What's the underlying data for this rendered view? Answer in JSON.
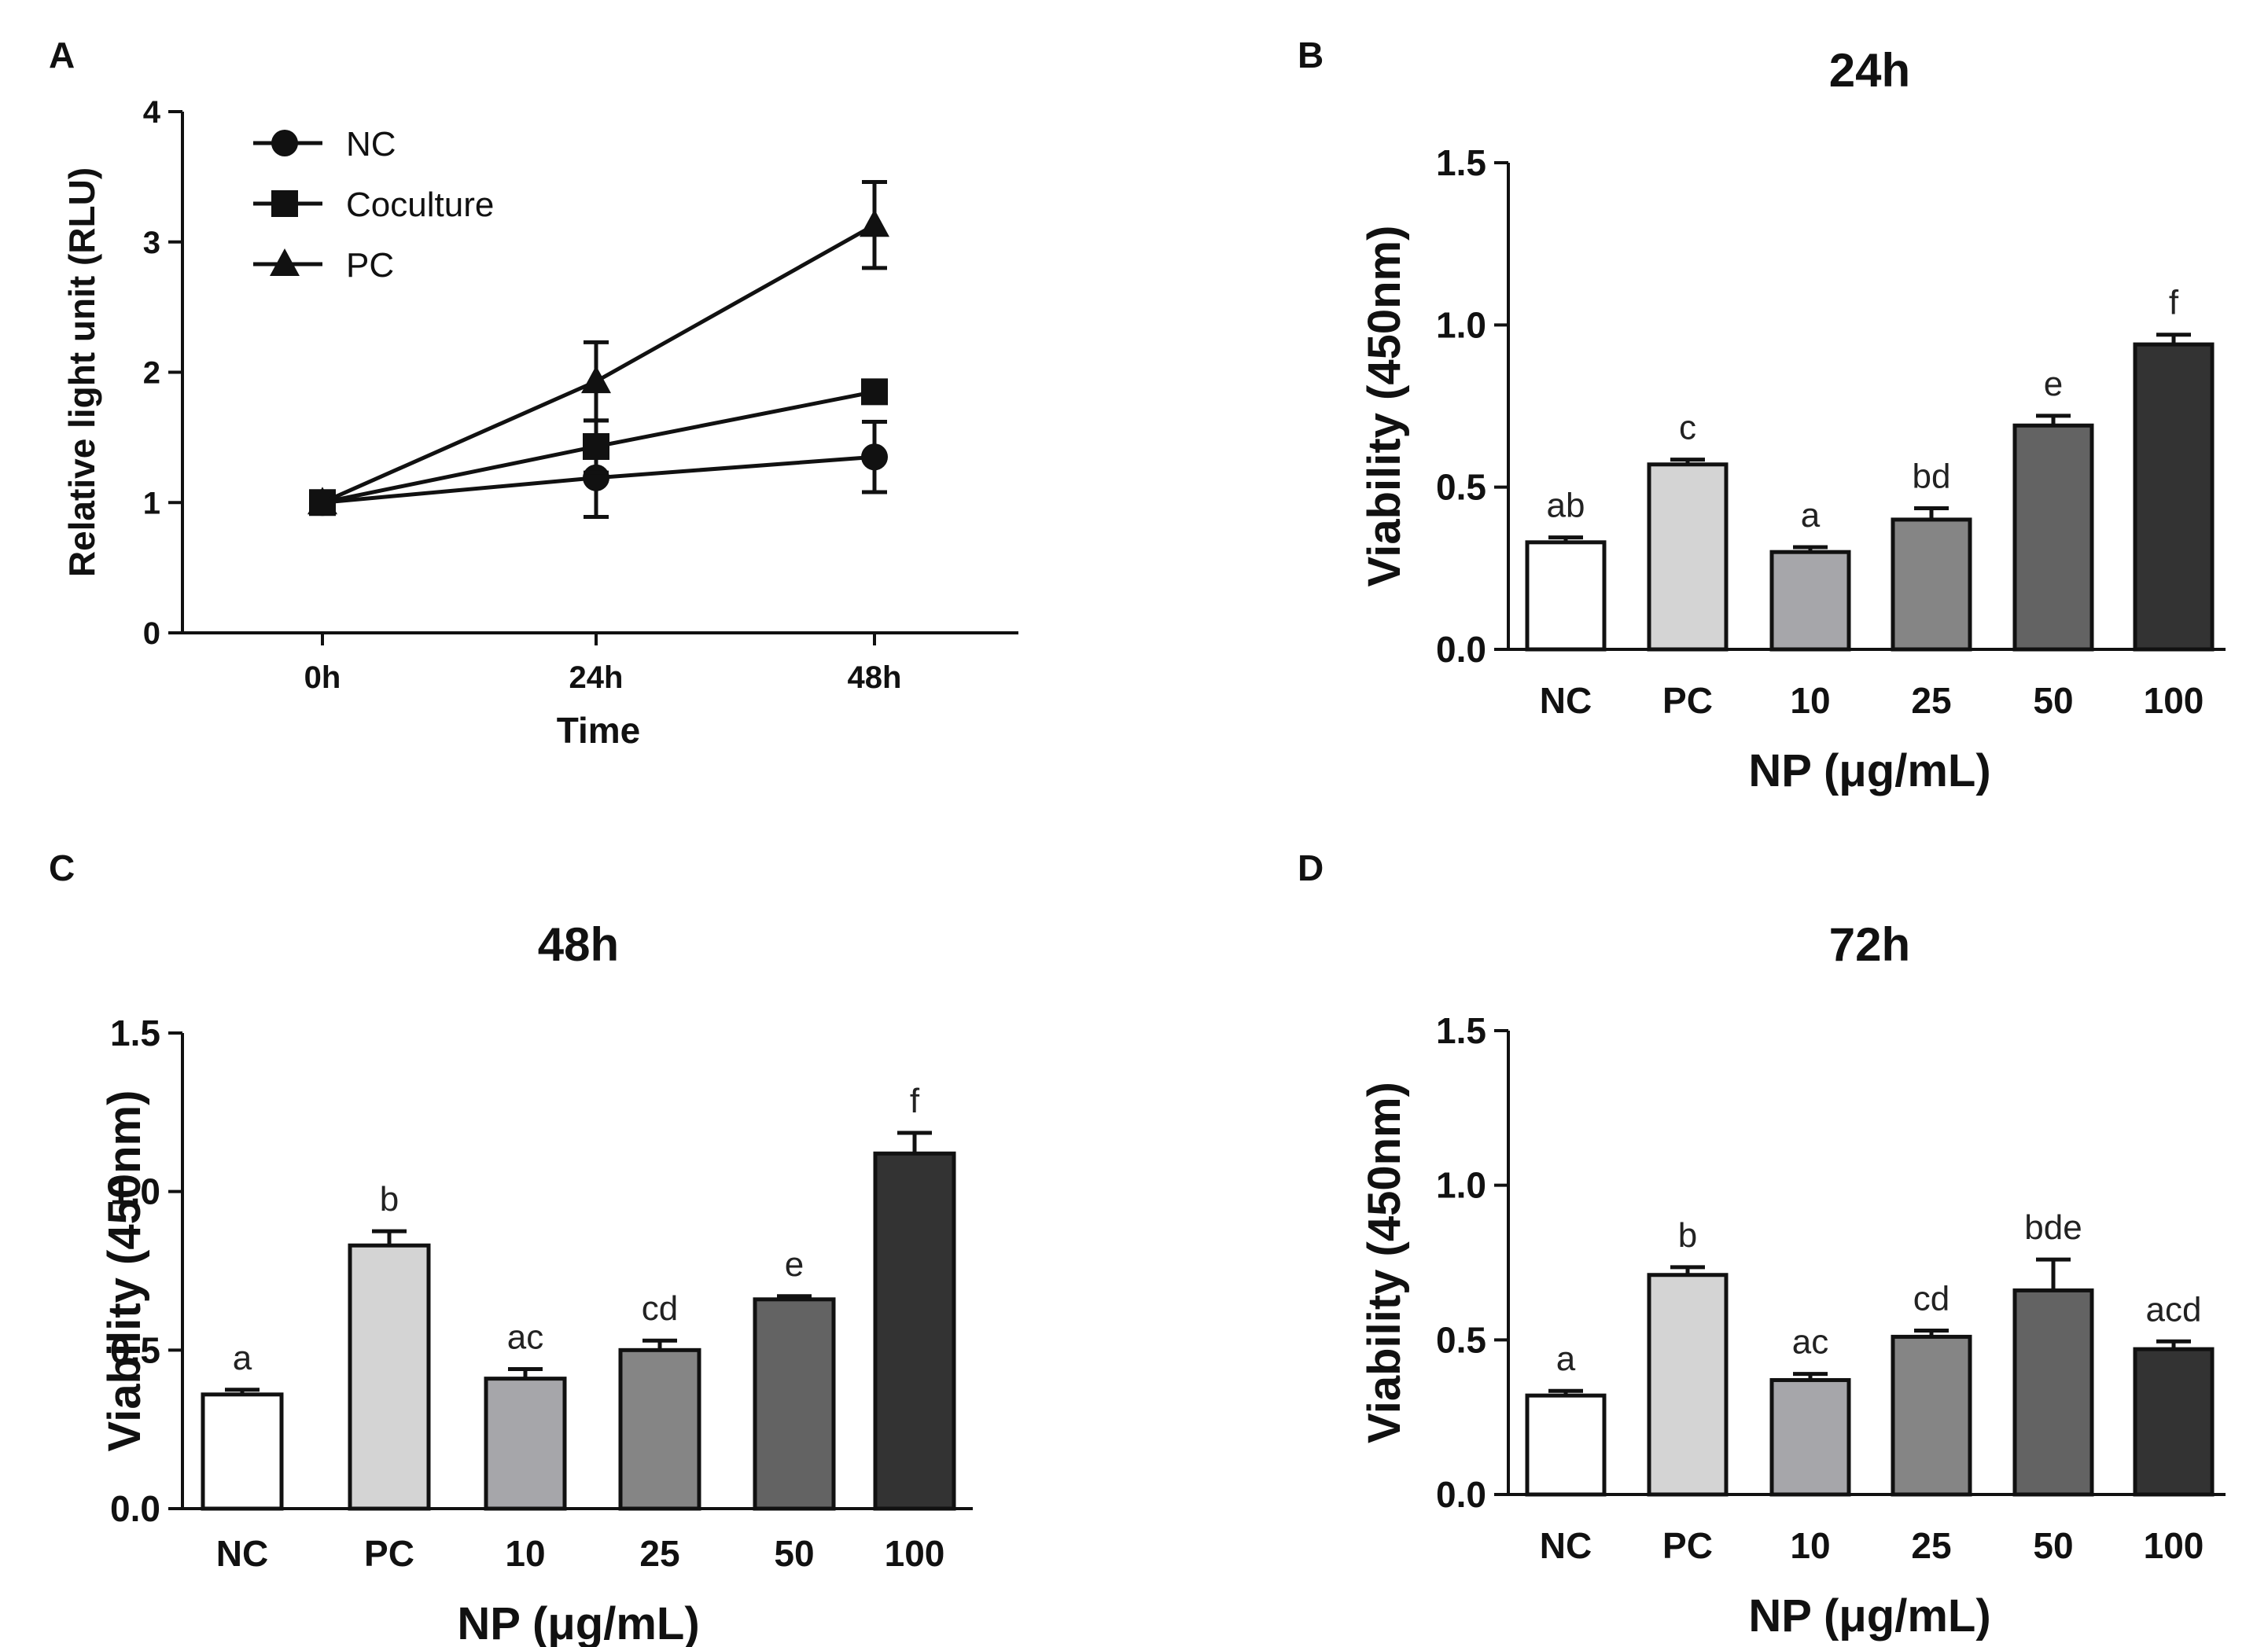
{
  "colors": {
    "ink": "#111111",
    "bar_fills": [
      "#ffffff",
      "#d4d4d4",
      "#a6a6aa",
      "#858585",
      "#636363",
      "#333333"
    ]
  },
  "chart_data": [
    {
      "panel": "A",
      "type": "line",
      "title": "",
      "xlabel": "Time",
      "ylabel": "Relative light unit (RLU)",
      "categories": [
        "0h",
        "24h",
        "48h"
      ],
      "ylim": [
        0,
        4
      ],
      "yticks": [
        "0",
        "1",
        "2",
        "3",
        "4"
      ],
      "legend_position": "top-left",
      "series": [
        {
          "name": "NC",
          "marker": "circle",
          "values": [
            1.0,
            1.19,
            1.35
          ],
          "errors": [
            0.0,
            0.3,
            0.27
          ]
        },
        {
          "name": "Coculture",
          "marker": "square",
          "values": [
            1.0,
            1.43,
            1.85
          ],
          "errors": [
            0.0,
            0.2,
            0.0
          ]
        },
        {
          "name": "PC",
          "marker": "triangle",
          "values": [
            1.0,
            1.93,
            3.13
          ],
          "errors": [
            0.0,
            0.3,
            0.33
          ]
        }
      ]
    },
    {
      "panel": "B",
      "type": "bar",
      "title": "24h",
      "xlabel": "NP (μg/mL)",
      "ylabel": "Viability (450nm)",
      "categories": [
        "NC",
        "PC",
        "10",
        "25",
        "50",
        "100"
      ],
      "ylim": [
        0,
        1.5
      ],
      "yticks": [
        "0.0",
        "0.5",
        "1.0",
        "1.5"
      ],
      "values": [
        0.33,
        0.57,
        0.3,
        0.4,
        0.69,
        0.94
      ],
      "errors": [
        0.015,
        0.015,
        0.015,
        0.035,
        0.03,
        0.03
      ],
      "significance": [
        "ab",
        "c",
        "a",
        "bd",
        "e",
        "f"
      ]
    },
    {
      "panel": "C",
      "type": "bar",
      "title": "48h",
      "xlabel": "NP (μg/mL)",
      "ylabel": "Viability (450nm)",
      "categories": [
        "NC",
        "PC",
        "10",
        "25",
        "50",
        "100"
      ],
      "ylim": [
        0,
        1.5
      ],
      "yticks": [
        "0.0",
        "0.5",
        "1.0",
        "1.5"
      ],
      "values": [
        0.36,
        0.83,
        0.41,
        0.5,
        0.66,
        1.12
      ],
      "errors": [
        0.015,
        0.045,
        0.03,
        0.03,
        0.01,
        0.065
      ],
      "significance": [
        "a",
        "b",
        "ac",
        "cd",
        "e",
        "f"
      ]
    },
    {
      "panel": "D",
      "type": "bar",
      "title": "72h",
      "xlabel": "NP (μg/mL)",
      "ylabel": "Viability (450nm)",
      "categories": [
        "NC",
        "PC",
        "10",
        "25",
        "50",
        "100"
      ],
      "ylim": [
        0,
        1.5
      ],
      "yticks": [
        "0.0",
        "0.5",
        "1.0",
        "1.5"
      ],
      "values": [
        0.32,
        0.71,
        0.37,
        0.51,
        0.66,
        0.47
      ],
      "errors": [
        0.015,
        0.025,
        0.02,
        0.02,
        0.1,
        0.025
      ],
      "significance": [
        "a",
        "b",
        "ac",
        "cd",
        "bde",
        "acd"
      ]
    }
  ]
}
